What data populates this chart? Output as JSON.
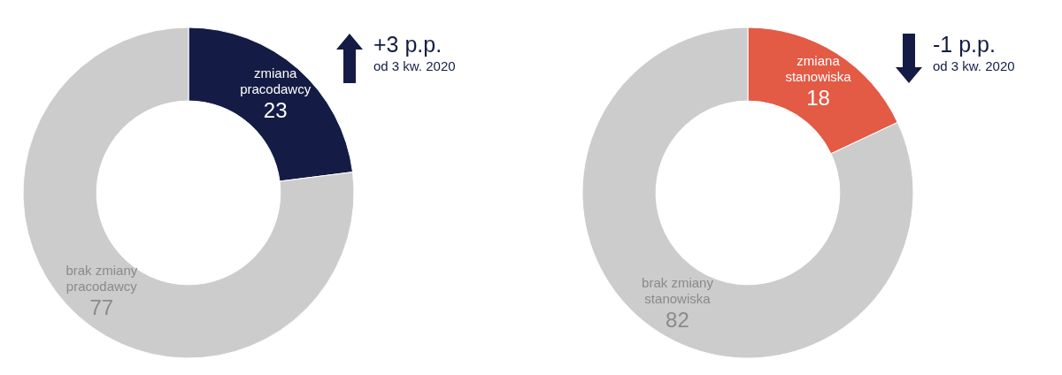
{
  "chart_data": [
    {
      "type": "donut",
      "categories": [
        "zmiana pracodawcy",
        "brak zmiany pracodawcy"
      ],
      "values": [
        23,
        77
      ],
      "colors": [
        "#141c45",
        "#cccccc"
      ],
      "data_labels": true,
      "legend": false,
      "annotations": [
        "+3 p.p.",
        "od 3 kw. 2020"
      ]
    },
    {
      "type": "donut",
      "categories": [
        "zmiana stanowiska",
        "brak zmiany stanowiska"
      ],
      "values": [
        18,
        82
      ],
      "colors": [
        "#e35a45",
        "#cccccc"
      ],
      "data_labels": true,
      "legend": false,
      "annotations": [
        "-1 p.p.",
        "od 3 kw. 2020"
      ]
    }
  ]
}
